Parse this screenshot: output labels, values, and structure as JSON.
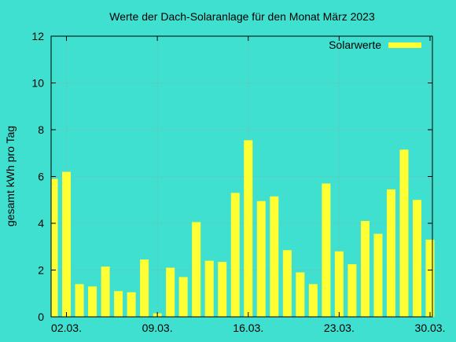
{
  "chart_data": {
    "type": "bar",
    "title": "Werte der Dach-Solaranlage für den Monat März 2023",
    "xlabel": "",
    "ylabel": "gesamt kWh pro Tag",
    "ylim": [
      0,
      12
    ],
    "xlim": [
      1,
      31
    ],
    "y_ticks": [
      0,
      2,
      4,
      6,
      8,
      10,
      12
    ],
    "x_ticks": [
      {
        "x": 2,
        "label": "02.03."
      },
      {
        "x": 9,
        "label": "09.03."
      },
      {
        "x": 16,
        "label": "16.03."
      },
      {
        "x": 23,
        "label": "23.03."
      },
      {
        "x": 30,
        "label": "30.03."
      }
    ],
    "grid": true,
    "legend_position": "top-right",
    "colors": {
      "background": "#40E0D0",
      "bar": "#FFFF33",
      "grid": "#A0A0A0",
      "axes": "#000000"
    },
    "series": [
      {
        "name": "Solarwerte",
        "x": [
          1,
          2,
          3,
          4,
          5,
          6,
          7,
          8,
          9,
          10,
          11,
          12,
          13,
          14,
          15,
          16,
          17,
          18,
          19,
          20,
          21,
          22,
          23,
          24,
          25,
          26,
          27,
          28,
          29,
          30
        ],
        "values": [
          5.9,
          6.2,
          1.4,
          1.3,
          2.15,
          1.1,
          1.05,
          2.45,
          0.15,
          2.1,
          1.7,
          4.05,
          2.4,
          2.35,
          5.3,
          7.55,
          4.95,
          5.15,
          2.85,
          1.9,
          1.4,
          5.7,
          2.8,
          2.25,
          4.1,
          3.55,
          5.45,
          7.15,
          5.0,
          3.3
        ]
      }
    ]
  }
}
